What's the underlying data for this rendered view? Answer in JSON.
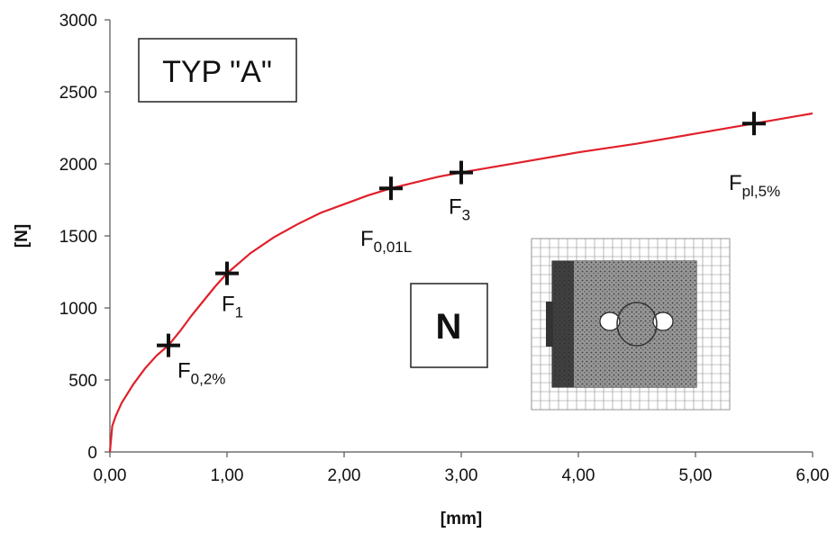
{
  "chart_data": {
    "type": "line",
    "xlabel": "[mm]",
    "ylabel": "[N]",
    "xlim": [
      0,
      6
    ],
    "ylim": [
      0,
      3000
    ],
    "xticks": [
      "0,00",
      "1,00",
      "2,00",
      "3,00",
      "4,00",
      "5,00",
      "6,00"
    ],
    "yticks": [
      "0",
      "500",
      "1000",
      "1500",
      "2000",
      "2500",
      "3000"
    ],
    "grid": false,
    "line_color": "#e0202a",
    "series": [
      {
        "x": [
          0,
          0.02,
          0.05,
          0.1,
          0.2,
          0.3,
          0.4,
          0.5,
          0.6,
          0.7,
          0.8,
          0.9,
          1.0,
          1.1,
          1.2,
          1.4,
          1.6,
          1.8,
          2.0,
          2.2,
          2.4,
          2.6,
          2.8,
          3.0,
          3.5,
          4.0,
          4.5,
          5.0,
          5.5,
          6.0
        ],
        "y": [
          0,
          180,
          250,
          340,
          470,
          580,
          670,
          740,
          840,
          950,
          1050,
          1150,
          1240,
          1310,
          1380,
          1490,
          1580,
          1660,
          1720,
          1780,
          1830,
          1870,
          1910,
          1940,
          2010,
          2080,
          2140,
          2210,
          2280,
          2350
        ]
      }
    ],
    "markers": [
      {
        "x": 0.5,
        "y": 740,
        "label": "F",
        "sub": "0,2%"
      },
      {
        "x": 1.0,
        "y": 1240,
        "label": "F",
        "sub": "1"
      },
      {
        "x": 2.4,
        "y": 1830,
        "label": "F",
        "sub": "0,01L"
      },
      {
        "x": 3.0,
        "y": 1940,
        "label": "F",
        "sub": "3"
      },
      {
        "x": 5.5,
        "y": 2280,
        "label": "F",
        "sub": "pl,5%"
      }
    ],
    "annotations": {
      "type_box": "TYP \"A\"",
      "n_box": "N"
    }
  }
}
